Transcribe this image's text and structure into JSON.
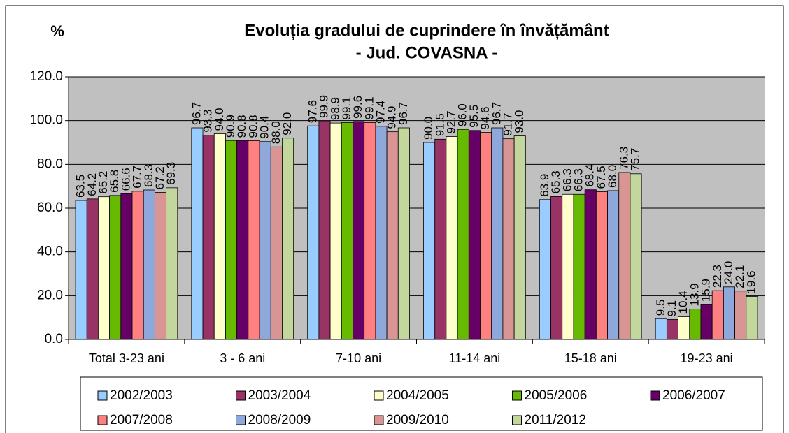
{
  "chart_data": {
    "type": "bar",
    "title": "Evoluția gradului de cuprindere în învățământ",
    "subtitle": "- Jud. COVASNA -",
    "y_label": "%",
    "categories": [
      "Total 3-23 ani",
      "3 - 6 ani",
      "7-10 ani",
      "11-14 ani",
      "15-18 ani",
      "19-23 ani"
    ],
    "ylim": [
      0,
      120
    ],
    "yticks": [
      {
        "value": 0,
        "label": "0.0"
      },
      {
        "value": 20,
        "label": "20.0"
      },
      {
        "value": 40,
        "label": "40.0"
      },
      {
        "value": 60,
        "label": "60.0"
      },
      {
        "value": 80,
        "label": "80.0"
      },
      {
        "value": 100,
        "label": "100.0"
      },
      {
        "value": 120,
        "label": "120.0"
      }
    ],
    "grid": true,
    "legend": "bottom",
    "series": [
      {
        "name": "2002/2003",
        "color": "#99ccff",
        "values": [
          63.5,
          96.7,
          97.6,
          90.0,
          63.9,
          9.5
        ],
        "value_labels": [
          "63.5",
          "96.7",
          "97.6",
          "90.0",
          "63.9",
          "9.5"
        ]
      },
      {
        "name": "2003/2004",
        "color": "#993366",
        "values": [
          64.2,
          93.3,
          99.9,
          91.5,
          65.3,
          9.1
        ],
        "value_labels": [
          "64.2",
          "93.3",
          "99.9",
          "91.5",
          "65.3",
          "9.1"
        ]
      },
      {
        "name": "2004/2005",
        "color": "#ffffcc",
        "values": [
          65.2,
          94.0,
          98.9,
          92.7,
          66.3,
          10.4
        ],
        "value_labels": [
          "65.2",
          "94.0",
          "98.9",
          "92.7",
          "66.3",
          "10.4"
        ]
      },
      {
        "name": "2005/2006",
        "color": "#66bb00",
        "values": [
          65.8,
          90.9,
          99.1,
          96.0,
          66.3,
          13.9
        ],
        "value_labels": [
          "65.8",
          "90.9",
          "99.1",
          "96.0",
          "66.3",
          "13.9"
        ]
      },
      {
        "name": "2006/2007",
        "color": "#660066",
        "values": [
          66.6,
          90.8,
          99.6,
          95.5,
          68.4,
          15.9
        ],
        "value_labels": [
          "66.6",
          "90.8",
          "99.6",
          "95.5",
          "68.4",
          "15.9"
        ]
      },
      {
        "name": "2007/2008",
        "color": "#ff8080",
        "values": [
          67.7,
          90.8,
          99.1,
          94.6,
          67.5,
          22.3
        ],
        "value_labels": [
          "67.7",
          "90.8",
          "99.1",
          "94.6",
          "67.5",
          "22.3"
        ]
      },
      {
        "name": "2008/2009",
        "color": "#8fa8dc",
        "values": [
          68.3,
          90.4,
          97.4,
          96.7,
          68.0,
          24.0
        ],
        "value_labels": [
          "68.3",
          "90.4",
          "97.4",
          "96.7",
          "68.0",
          "24.0"
        ]
      },
      {
        "name": "2009/2010",
        "color": "#d99594",
        "values": [
          67.2,
          88.0,
          94.9,
          91.7,
          76.3,
          22.1
        ],
        "value_labels": [
          "67.2",
          "88.0",
          "94.9",
          "91.7",
          "76.3",
          "22.1"
        ]
      },
      {
        "name": "2011/2012",
        "color": "#c3d69b",
        "values": [
          69.3,
          92.0,
          96.7,
          93.0,
          75.7,
          19.6
        ],
        "value_labels": [
          "69.3",
          "92.0",
          "96.7",
          "93.0",
          "75.7",
          "19.6"
        ]
      }
    ]
  }
}
